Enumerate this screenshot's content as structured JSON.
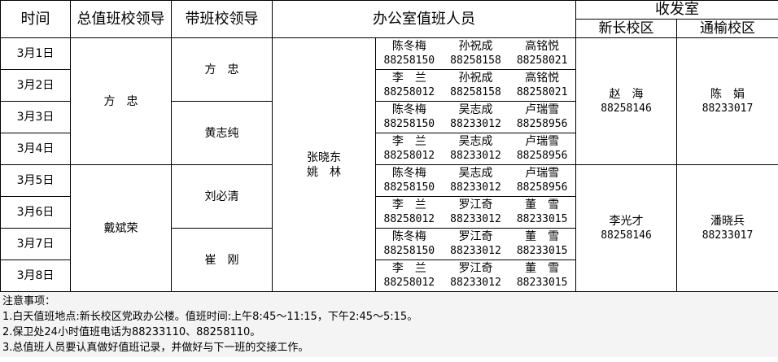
{
  "header": {
    "time": "时间",
    "general_leader": "总值班校领导",
    "shift_leader": "带班校领导",
    "office": "办公室值班人员",
    "mailroom": "收发室",
    "campus_new": "新长校区",
    "campus_tong": "通榆校区"
  },
  "general_leaders": [
    "方　忠",
    "戴斌荣"
  ],
  "shift_leaders": [
    "方　忠",
    "黄志纯",
    "刘必清",
    "崔　刚"
  ],
  "office_lead": [
    "张晓东",
    "姚　林"
  ],
  "mailroom": [
    {
      "new_name": "赵　海",
      "new_phone": "88258146",
      "tong_name": "陈　娟",
      "tong_phone": "88233017"
    },
    {
      "new_name": "李光才",
      "new_phone": "88258146",
      "tong_name": "潘晓兵",
      "tong_phone": "88233017"
    }
  ],
  "rows": [
    {
      "date": "3月1日",
      "staff": [
        [
          "陈冬梅",
          "88258150"
        ],
        [
          "孙祝成",
          "88258158"
        ],
        [
          "高铭悦",
          "88258021"
        ]
      ]
    },
    {
      "date": "3月2日",
      "staff": [
        [
          "李　兰",
          "88258012"
        ],
        [
          "孙祝成",
          "88258158"
        ],
        [
          "高铭悦",
          "88258021"
        ]
      ]
    },
    {
      "date": "3月3日",
      "staff": [
        [
          "陈冬梅",
          "88258150"
        ],
        [
          "吴志成",
          "88233012"
        ],
        [
          "卢瑞雪",
          "88258956"
        ]
      ]
    },
    {
      "date": "3月4日",
      "staff": [
        [
          "李　兰",
          "88258012"
        ],
        [
          "吴志成",
          "88233012"
        ],
        [
          "卢瑞雪",
          "88258956"
        ]
      ]
    },
    {
      "date": "3月5日",
      "staff": [
        [
          "陈冬梅",
          "88258150"
        ],
        [
          "吴志成",
          "88233012"
        ],
        [
          "卢瑞雪",
          "88258956"
        ]
      ]
    },
    {
      "date": "3月6日",
      "staff": [
        [
          "李　兰",
          "88258012"
        ],
        [
          "罗江奇",
          "88233012"
        ],
        [
          "董　雪",
          "88233015"
        ]
      ]
    },
    {
      "date": "3月7日",
      "staff": [
        [
          "陈冬梅",
          "88258150"
        ],
        [
          "罗江奇",
          "88233012"
        ],
        [
          "董　雪",
          "88233015"
        ]
      ]
    },
    {
      "date": "3月8日",
      "staff": [
        [
          "李　兰",
          "88258012"
        ],
        [
          "罗江奇",
          "88233012"
        ],
        [
          "董　雪",
          "88233015"
        ]
      ]
    }
  ],
  "notes": [
    "注意事项：",
    "1.白天值班地点:新长校区党政办公楼。值班时间:上午8:45～11:15，下午2:45～5:15。",
    "2.保卫处24小时值班电话为88233110、88258110。",
    "3.总值班人员要认真做好值班记录，并做好与下一班的交接工作。"
  ]
}
